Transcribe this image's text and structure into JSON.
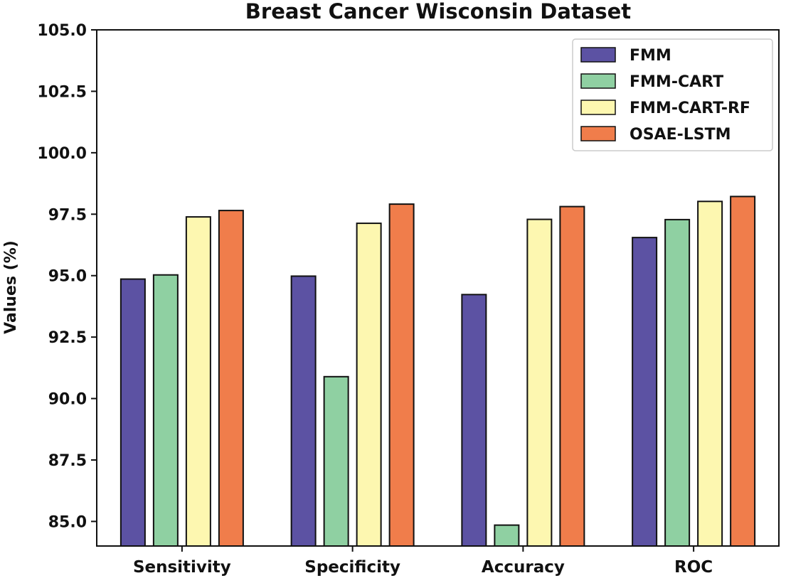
{
  "chart_data": {
    "type": "bar",
    "title": "Breast Cancer Wisconsin Dataset",
    "xlabel": "",
    "ylabel": "Values (%)",
    "ylim": [
      84.0,
      105.0
    ],
    "yticks": [
      "85.0",
      "87.5",
      "90.0",
      "92.5",
      "95.0",
      "97.5",
      "100.0",
      "102.5",
      "105.0"
    ],
    "ytick_values": [
      85.0,
      87.5,
      90.0,
      92.5,
      95.0,
      97.5,
      100.0,
      102.5,
      105.0
    ],
    "categories": [
      "Sensitivity",
      "Specificity",
      "Accuracy",
      "ROC"
    ],
    "series": [
      {
        "name": "FMM",
        "color": "#5c52a3",
        "values": [
          94.86,
          94.98,
          94.23,
          96.55
        ]
      },
      {
        "name": "FMM-CART",
        "color": "#8fd0a2",
        "values": [
          95.03,
          90.89,
          84.85,
          97.28
        ]
      },
      {
        "name": "FMM-CART-RF",
        "color": "#fdf7b0",
        "values": [
          97.39,
          97.13,
          97.29,
          98.02
        ]
      },
      {
        "name": "OSAE-LSTM",
        "color": "#f07d4b",
        "values": [
          97.65,
          97.91,
          97.81,
          98.22
        ]
      }
    ],
    "legend_position": "top-right",
    "grid": false
  }
}
